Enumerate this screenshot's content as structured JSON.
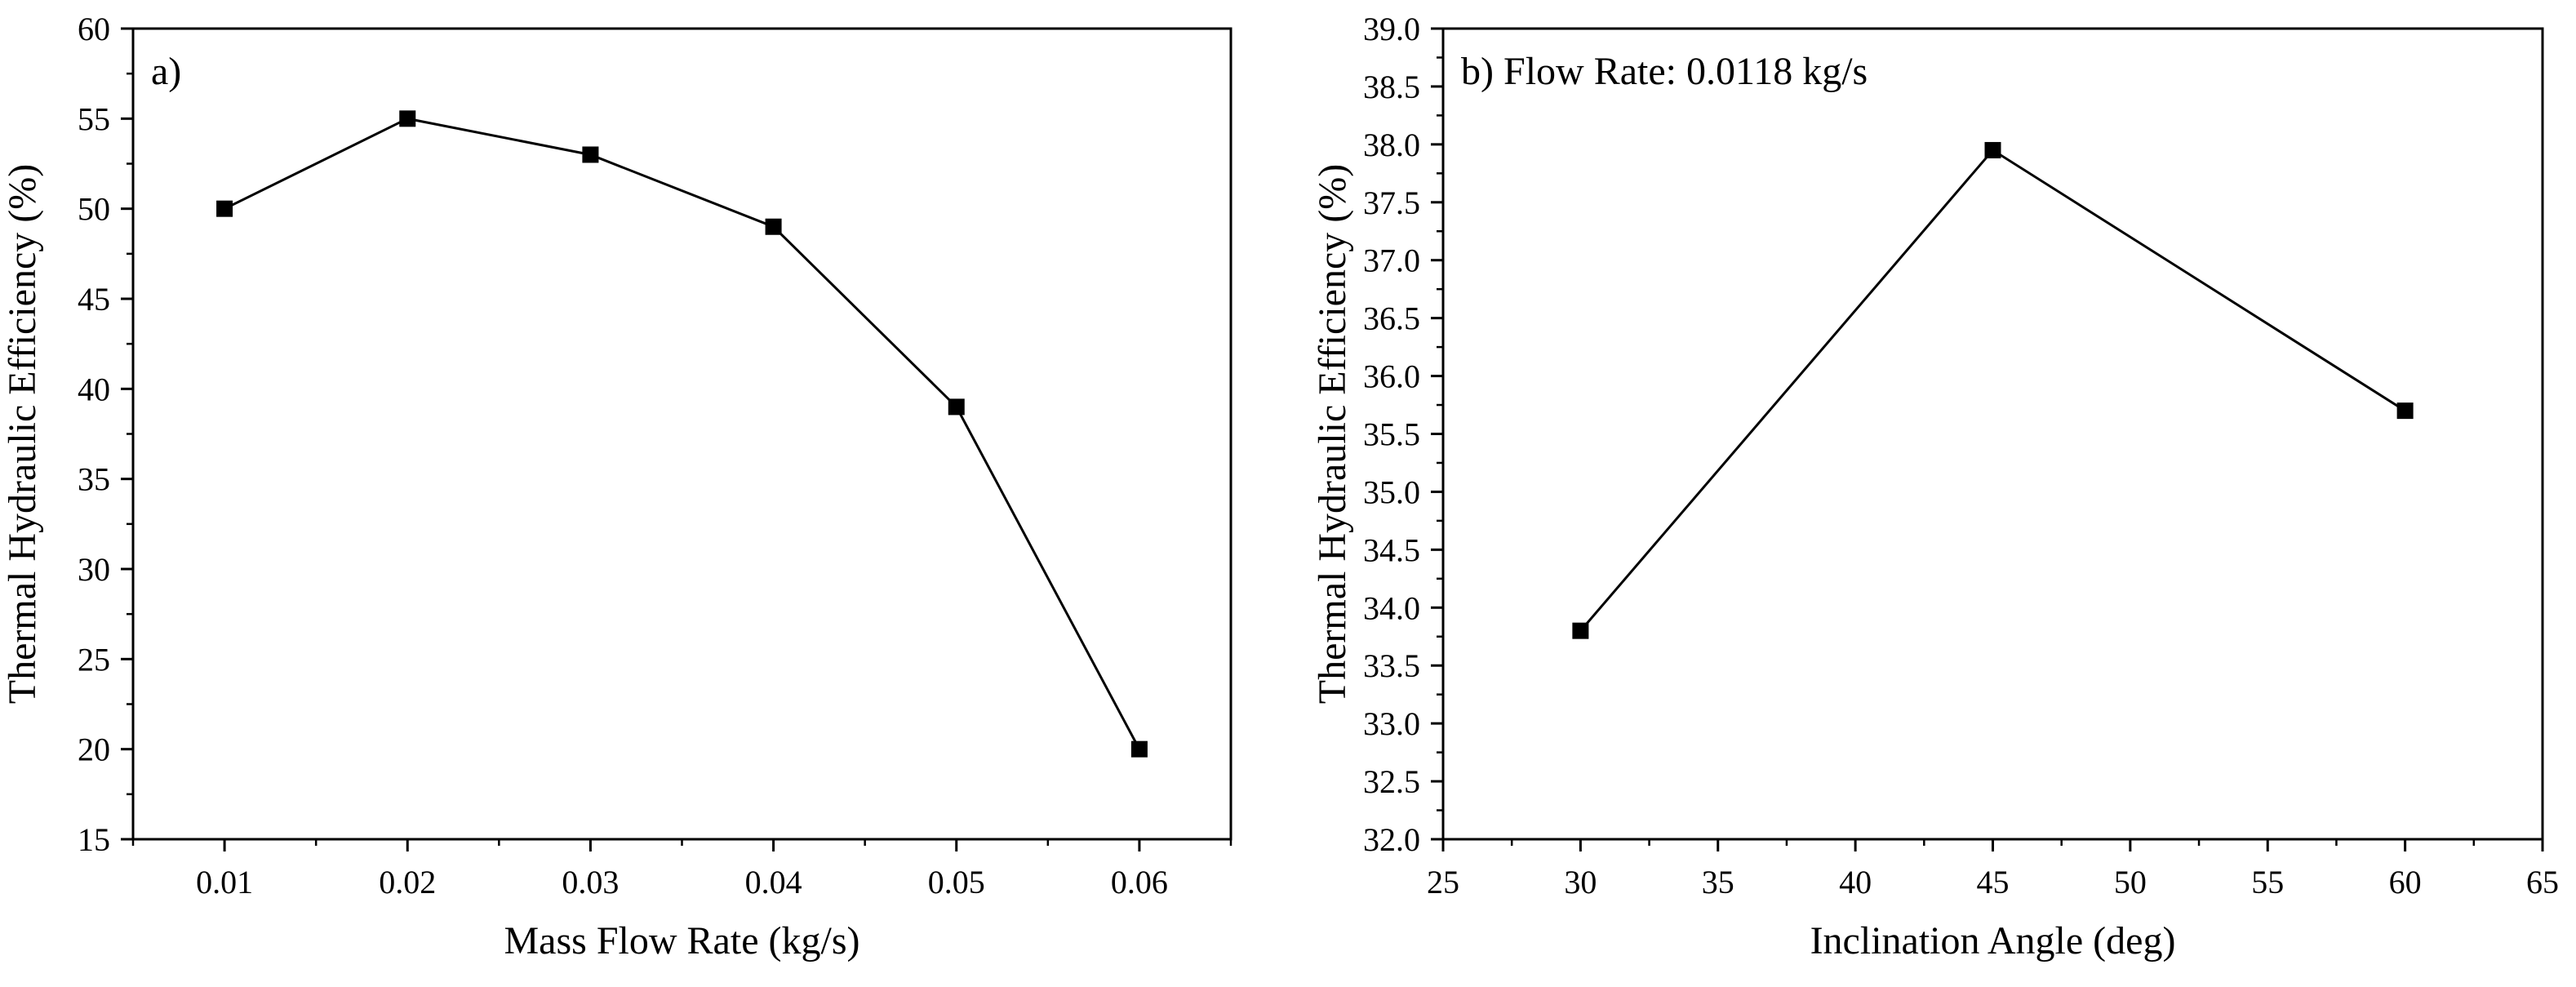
{
  "chart_data": [
    {
      "type": "line",
      "panel_label": "a)",
      "title": "",
      "xlabel": "Mass Flow Rate (kg/s)",
      "ylabel": "Thermal Hydraulic Efficiency (%)",
      "xlim": [
        0.005,
        0.065
      ],
      "ylim": [
        15,
        60
      ],
      "xticks": [
        "0.01",
        "0.02",
        "0.03",
        "0.04",
        "0.05",
        "0.06"
      ],
      "yticks": [
        "15",
        "20",
        "25",
        "30",
        "35",
        "40",
        "45",
        "50",
        "55",
        "60"
      ],
      "marker": "square",
      "grid": false,
      "legend": "none",
      "series": [
        {
          "name": "Thermal Hydraulic Efficiency",
          "x": [
            0.01,
            0.02,
            0.03,
            0.04,
            0.05,
            0.06
          ],
          "y": [
            50,
            55,
            53,
            49,
            39,
            20
          ]
        }
      ]
    },
    {
      "type": "line",
      "panel_label": "b)",
      "annotation": "Flow Rate: 0.0118 kg/s",
      "title": "",
      "xlabel": "Inclination Angle (deg)",
      "ylabel": "Thermal Hydraulic Efficiency (%)",
      "xlim": [
        25,
        65
      ],
      "ylim": [
        32.0,
        39.0
      ],
      "xticks": [
        "25",
        "30",
        "35",
        "40",
        "45",
        "50",
        "55",
        "60",
        "65"
      ],
      "yticks": [
        "32.0",
        "32.5",
        "33.0",
        "33.5",
        "34.0",
        "34.5",
        "35.0",
        "35.5",
        "36.0",
        "36.5",
        "37.0",
        "37.5",
        "38.0",
        "38.5",
        "39.0"
      ],
      "marker": "square",
      "grid": false,
      "legend": "none",
      "series": [
        {
          "name": "Thermal Hydraulic Efficiency",
          "x": [
            30,
            45,
            60
          ],
          "y": [
            33.8,
            37.95,
            35.7
          ]
        }
      ]
    }
  ],
  "colors": {
    "line": "#000000",
    "marker": "#000000",
    "axis": "#000000",
    "background": "#ffffff"
  }
}
